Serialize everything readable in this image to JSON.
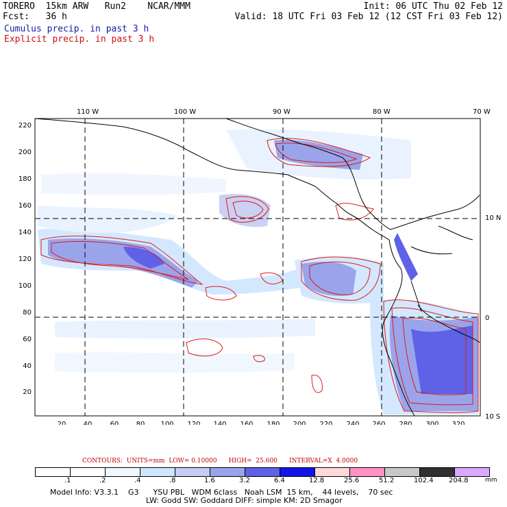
{
  "header": {
    "model_line": "TORERO  15km ARW   Run2    NCAR/MMM",
    "forecast_line": "Fcst:   36 h",
    "init_line": "Init: 06 UTC Thu 02 Feb 12",
    "valid_line": "Valid: 18 UTC Fri 03 Feb 12 (12 CST Fri 03 Feb 12)"
  },
  "legend": {
    "cumulus": "Cumulus precip. in past 3 h",
    "explicit": "Explicit precip. in past 3 h",
    "cumulus_color": "#1a1aa6",
    "explicit_color": "#d01010"
  },
  "map": {
    "lon_labels": [
      "110 W",
      "100 W",
      "90 W",
      "80 W",
      "70 W"
    ],
    "lat_labels_right": [
      "10 N",
      "0",
      "10 S"
    ],
    "y_ticks": [
      "20",
      "40",
      "60",
      "80",
      "100",
      "120",
      "140",
      "160",
      "180",
      "200",
      "220"
    ],
    "x_ticks": [
      "20",
      "40",
      "60",
      "80",
      "100",
      "120",
      "140",
      "160",
      "180",
      "200",
      "220",
      "240",
      "260",
      "280",
      "300",
      "320"
    ]
  },
  "contours": {
    "text": "CONTOURS:  UNITS=mm  LOW= 0.10000      HIGH=  25.600      INTERVAL=X  4.0000"
  },
  "colorbar": {
    "labels": [
      ".1",
      ".2",
      ".4",
      ".8",
      "1.6",
      "3.2",
      "6.4",
      "12.8",
      "25.6",
      "51.2",
      "102.4",
      "204.8"
    ],
    "colors": [
      "#ffffff",
      "#ffffff",
      "#f0f8ff",
      "#cfe6ff",
      "#c6cdf2",
      "#9aa4ea",
      "#5f62e6",
      "#1414e8",
      "#ffd8d8",
      "#ff93c6",
      "#c8c8c8",
      "#303030",
      "#d8aaff"
    ],
    "units": "mm"
  },
  "model_info": {
    "line1": "Model Info: V3.3.1    G3      YSU PBL   WDM 6class   Noah LSM  15 km,    44 levels,    70 sec",
    "line2": "LW: Godd SW: Goddard DIFF: simple KM: 2D Smagor"
  }
}
